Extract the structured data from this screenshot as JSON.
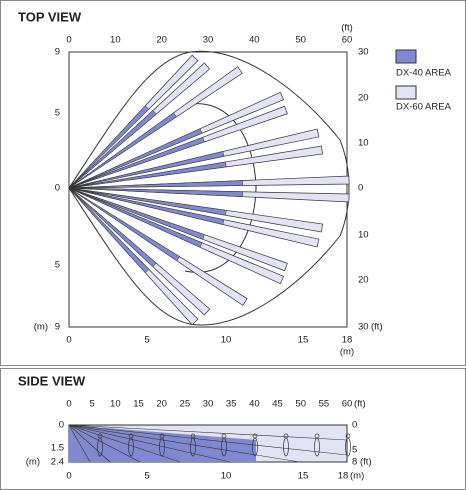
{
  "top_view": {
    "title": "TOP VIEW",
    "ft_top": [
      "0",
      "10",
      "20",
      "30",
      "40",
      "50",
      "60"
    ],
    "ft_top_unit": "(ft)",
    "m_left": [
      "9",
      "5",
      "0",
      "5",
      "9"
    ],
    "m_left_unit": "(m)",
    "ft_right": [
      "30",
      "20",
      "10",
      "0",
      "10",
      "20",
      "30"
    ],
    "ft_right_unit": "(ft)",
    "m_bottom": [
      "0",
      "5",
      "10",
      "15",
      "18"
    ],
    "m_bottom_unit": "(m)"
  },
  "legend": [
    {
      "label": "DX-40 AREA"
    },
    {
      "label": "DX-60 AREA"
    }
  ],
  "side_view": {
    "title": "SIDE VIEW",
    "ft_top": [
      "0",
      "5",
      "10",
      "15",
      "20",
      "25",
      "30",
      "35",
      "40",
      "45",
      "50",
      "55",
      "60"
    ],
    "ft_top_unit": "(ft)",
    "m_left": [
      "0",
      "1.5",
      "2.4"
    ],
    "m_left_unit": "(m)",
    "ft_right": [
      "0",
      "5",
      "8"
    ],
    "ft_right_unit": "(ft)",
    "m_bottom": [
      "0",
      "5",
      "10",
      "15",
      "18"
    ],
    "m_bottom_unit": "(m)"
  }
}
